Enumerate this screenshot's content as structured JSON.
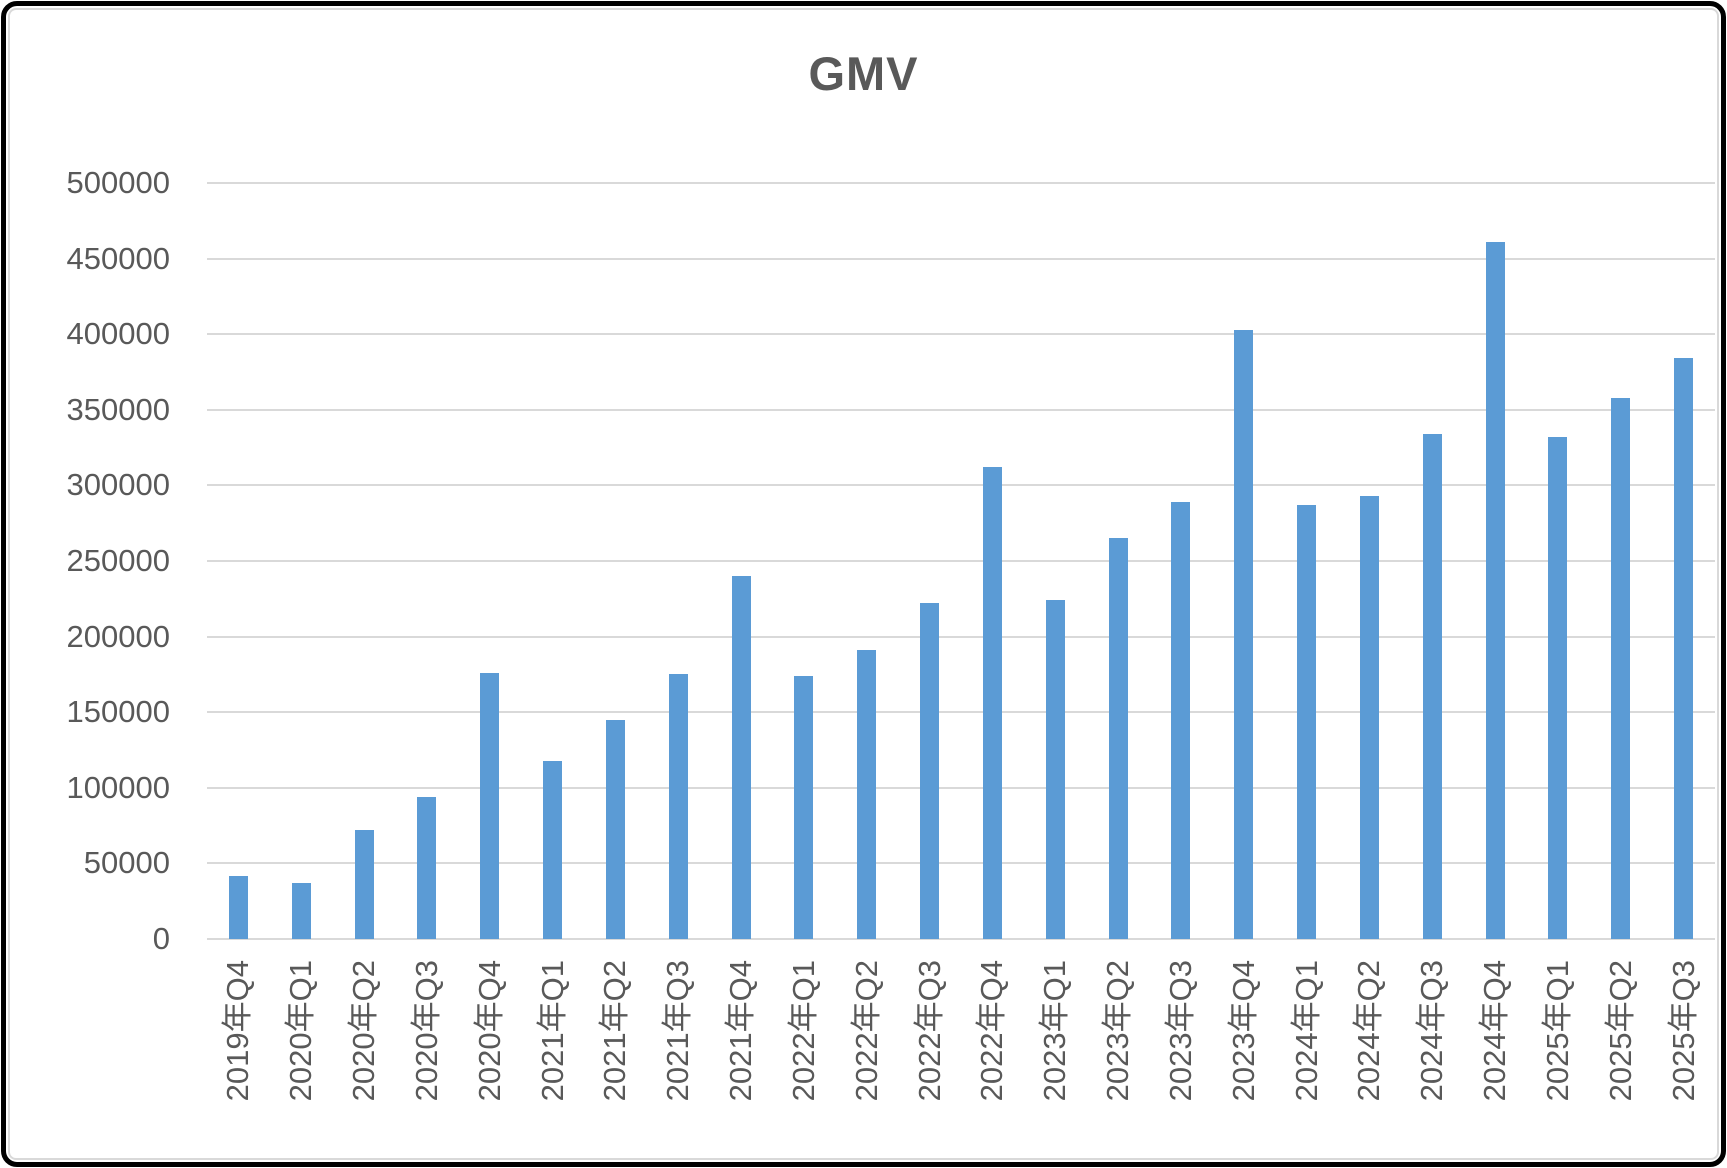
{
  "chart_data": {
    "type": "bar",
    "title": "GMV",
    "categories": [
      "2019年Q4",
      "2020年Q1",
      "2020年Q2",
      "2020年Q3",
      "2020年Q4",
      "2021年Q1",
      "2021年Q2",
      "2021年Q3",
      "2021年Q4",
      "2022年Q1",
      "2022年Q2",
      "2022年Q3",
      "2022年Q4",
      "2023年Q1",
      "2023年Q2",
      "2023年Q3",
      "2023年Q4",
      "2024年Q1",
      "2024年Q2",
      "2024年Q3",
      "2024年Q4",
      "2025年Q1",
      "2025年Q2",
      "2025年Q3"
    ],
    "values": [
      42000,
      37000,
      72000,
      94000,
      176000,
      118000,
      145000,
      175000,
      240000,
      174000,
      191000,
      222000,
      312000,
      224000,
      265000,
      289000,
      403000,
      287000,
      293000,
      334000,
      461000,
      332000,
      358000,
      384000
    ],
    "xlabel": "",
    "ylabel": "",
    "ylim": [
      0,
      500000
    ],
    "ytick_interval": 50000,
    "ytick_labels": [
      "0",
      "50000",
      "100000",
      "150000",
      "200000",
      "250000",
      "300000",
      "350000",
      "400000",
      "450000",
      "500000"
    ],
    "grid": true,
    "legend": "none",
    "x_label_rotation_degrees": 90,
    "colors": {
      "bar": "#5B9BD5",
      "text": "#595959",
      "gridline": "#D9D9D9",
      "background": "#FFFFFF",
      "frame_border": "#000000",
      "chart_area_border": "#D9D9D9"
    }
  }
}
